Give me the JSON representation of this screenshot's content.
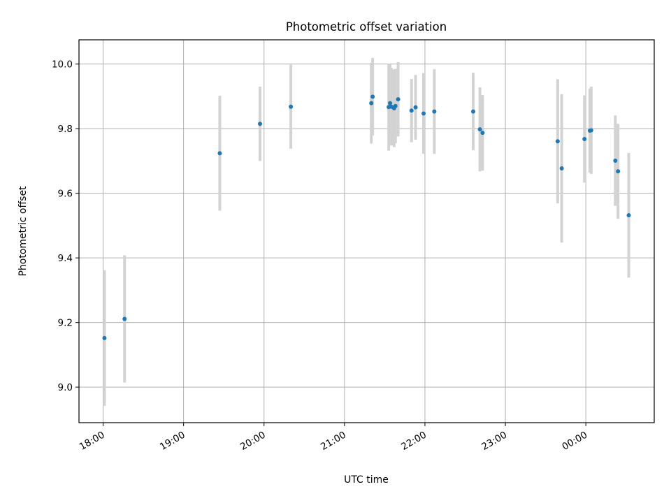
{
  "chart_data": {
    "type": "scatter",
    "title": "Photometric offset variation",
    "xlabel": "UTC time",
    "ylabel": "Photometric offset",
    "x_ticks": [
      "18:00",
      "19:00",
      "20:00",
      "21:00",
      "22:00",
      "23:00",
      "00:00"
    ],
    "x_tick_hours": [
      18,
      19,
      20,
      21,
      22,
      23,
      24
    ],
    "xlim_hours": [
      17.7,
      24.85
    ],
    "y_ticks": [
      "9.0",
      "9.2",
      "9.4",
      "9.6",
      "9.8",
      "10.0"
    ],
    "y_tick_values": [
      9.0,
      9.2,
      9.4,
      9.6,
      9.8,
      10.0
    ],
    "ylim": [
      8.89,
      10.075
    ],
    "grid": true,
    "colors": {
      "point": "#1f77b4",
      "errorbar": "#d3d3d3",
      "grid": "#b0b0b0",
      "axis": "#000000"
    },
    "points": [
      {
        "time": "18:01",
        "y": 9.152,
        "err": 0.21
      },
      {
        "time": "18:16",
        "y": 9.211,
        "err": 0.197
      },
      {
        "time": "19:27",
        "y": 9.724,
        "err": 0.178
      },
      {
        "time": "19:57",
        "y": 9.815,
        "err": 0.115
      },
      {
        "time": "20:20",
        "y": 9.868,
        "err": 0.13
      },
      {
        "time": "21:20",
        "y": 9.879,
        "err": 0.125
      },
      {
        "time": "21:21",
        "y": 9.899,
        "err": 0.12
      },
      {
        "time": "21:33",
        "y": 9.867,
        "err": 0.135
      },
      {
        "time": "21:34",
        "y": 9.879,
        "err": 0.12
      },
      {
        "time": "21:35",
        "y": 9.868,
        "err": 0.12
      },
      {
        "time": "21:37",
        "y": 9.863,
        "err": 0.12
      },
      {
        "time": "21:38",
        "y": 9.87,
        "err": 0.115
      },
      {
        "time": "21:40",
        "y": 9.891,
        "err": 0.115
      },
      {
        "time": "21:50",
        "y": 9.856,
        "err": 0.098
      },
      {
        "time": "21:53",
        "y": 9.866,
        "err": 0.1
      },
      {
        "time": "21:59",
        "y": 9.847,
        "err": 0.125
      },
      {
        "time": "22:07",
        "y": 9.853,
        "err": 0.131
      },
      {
        "time": "22:36",
        "y": 9.853,
        "err": 0.12
      },
      {
        "time": "22:41",
        "y": 9.798,
        "err": 0.13
      },
      {
        "time": "22:43",
        "y": 9.787,
        "err": 0.117
      },
      {
        "time": "23:39",
        "y": 9.761,
        "err": 0.192
      },
      {
        "time": "23:42",
        "y": 9.677,
        "err": 0.23
      },
      {
        "time": "23:59",
        "y": 9.768,
        "err": 0.135
      },
      {
        "time": "00:03",
        "y": 9.794,
        "err": 0.13
      },
      {
        "time": "00:04",
        "y": 9.795,
        "err": 0.135
      },
      {
        "time": "00:22",
        "y": 9.701,
        "err": 0.14
      },
      {
        "time": "00:24",
        "y": 9.668,
        "err": 0.147
      },
      {
        "time": "00:32",
        "y": 9.532,
        "err": 0.193
      }
    ]
  }
}
